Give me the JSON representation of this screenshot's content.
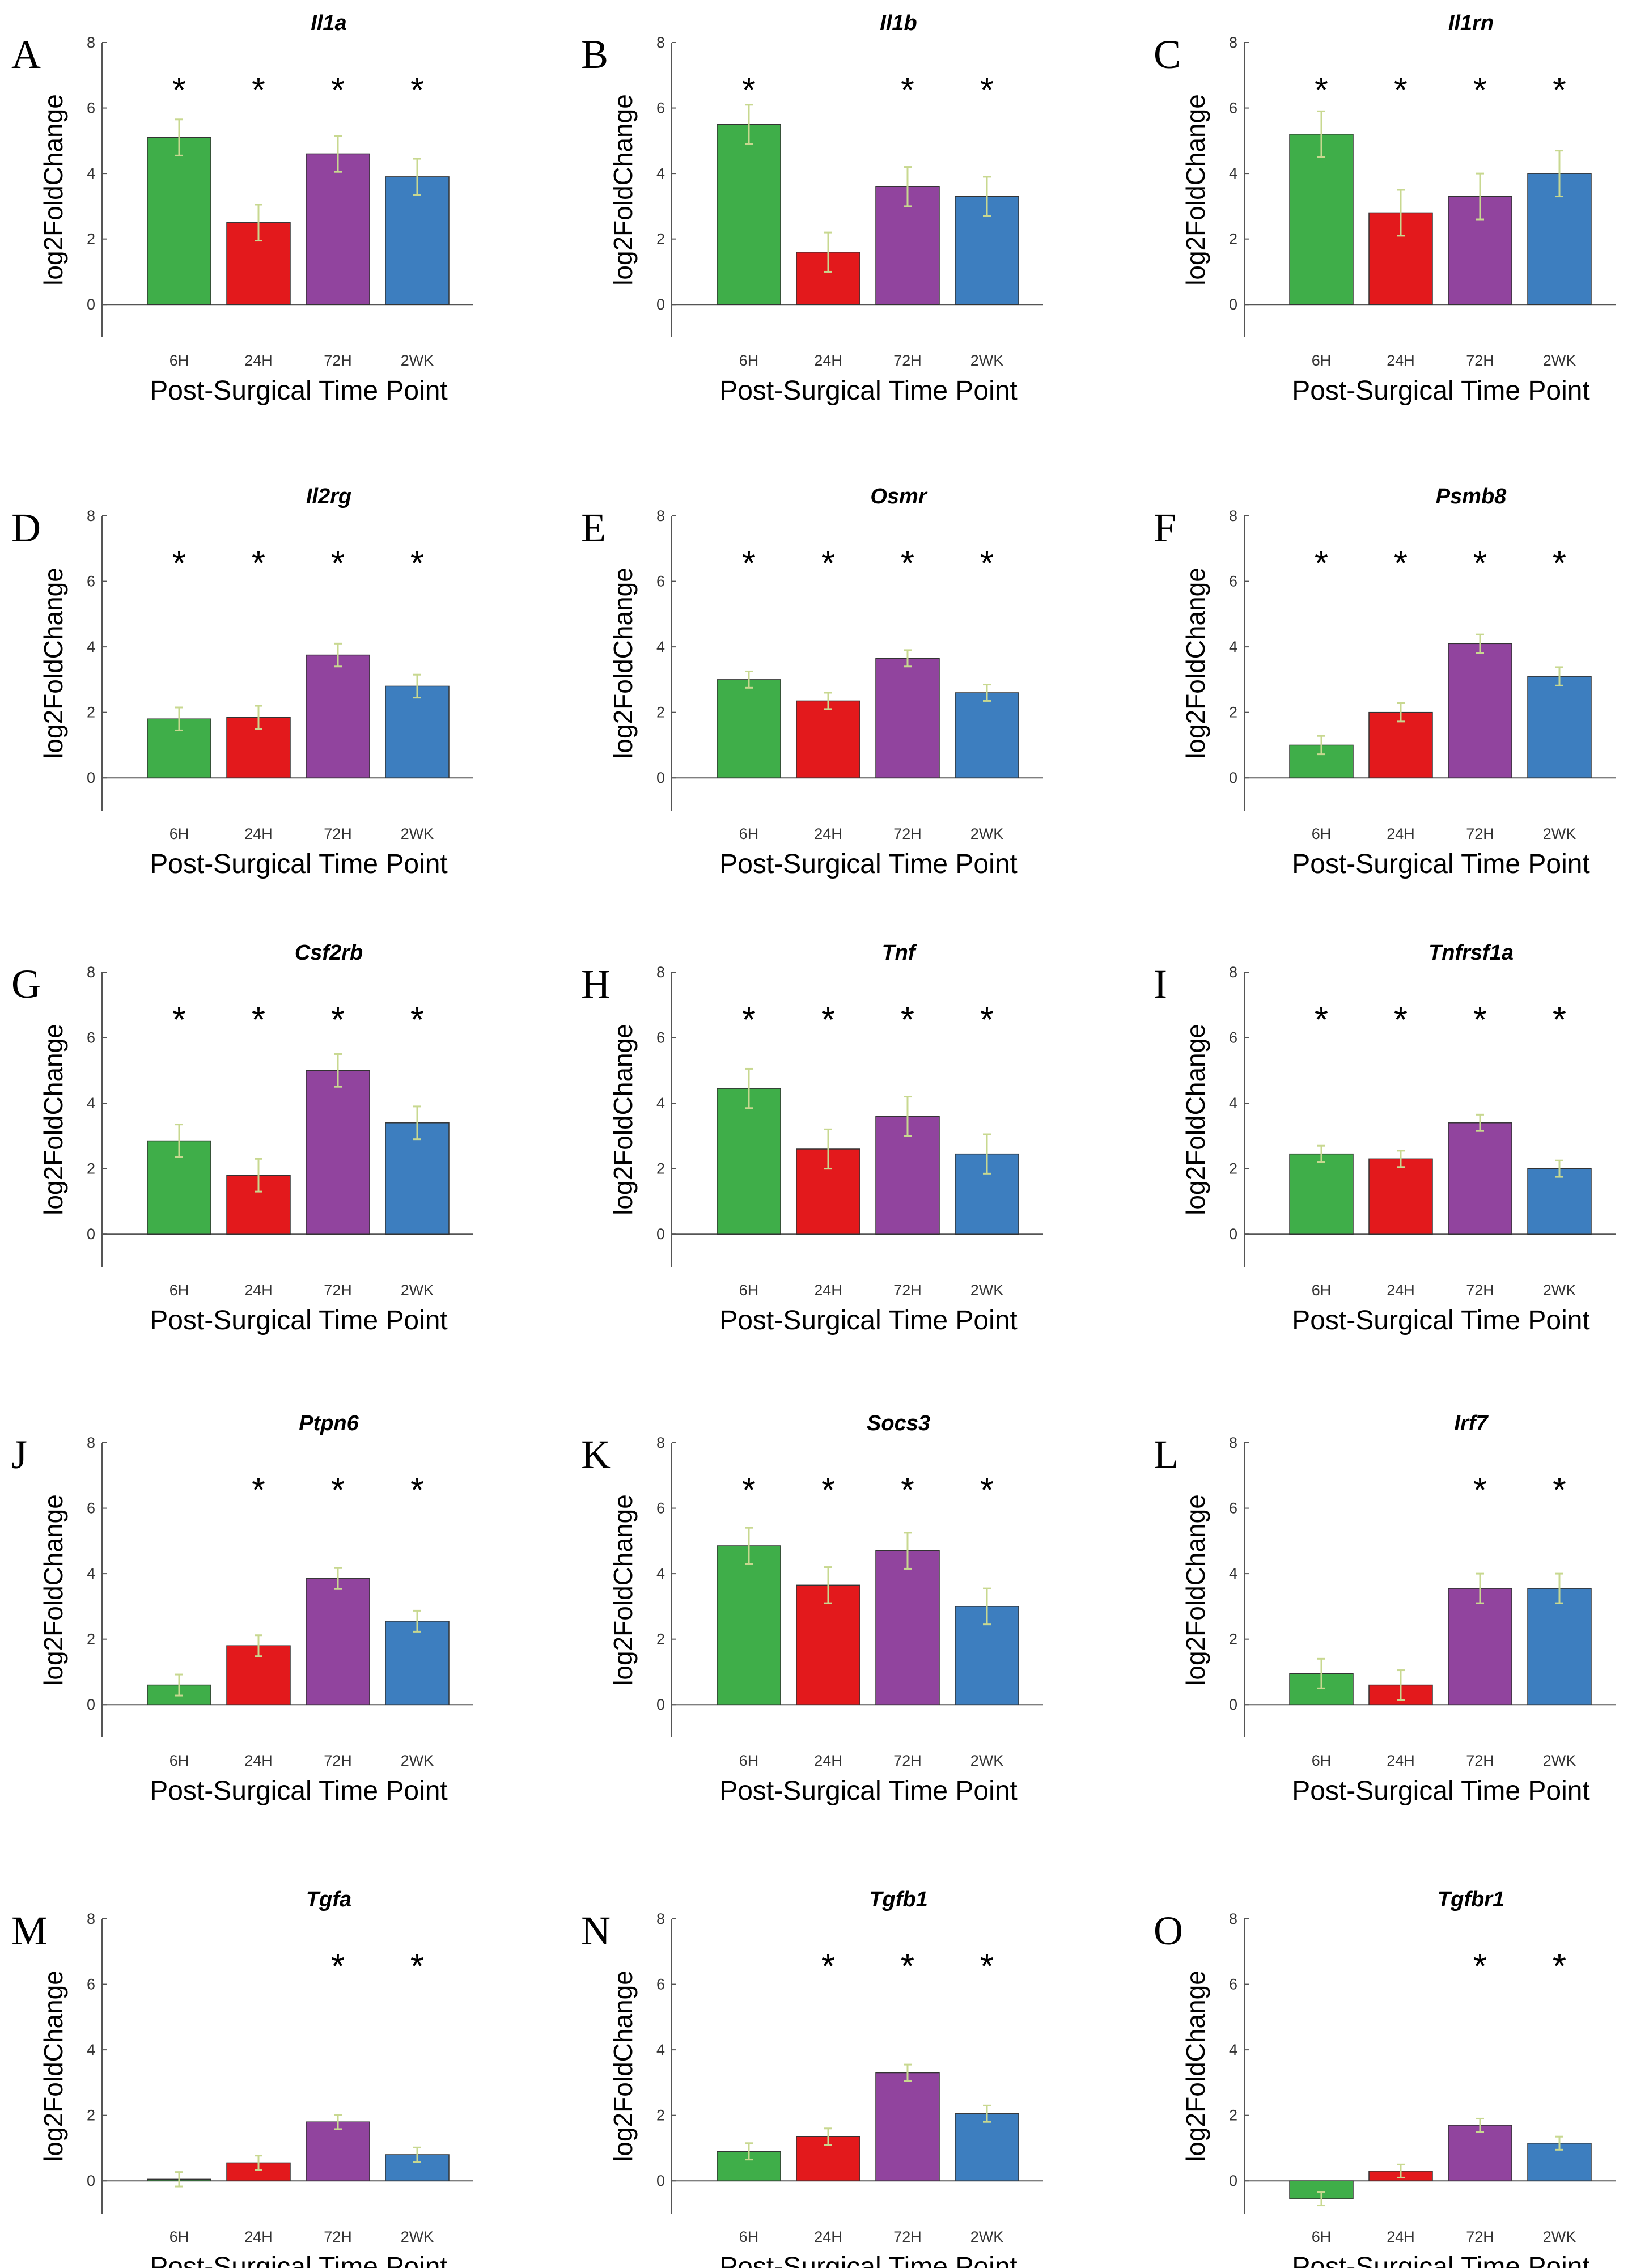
{
  "colors": {
    "6H": "#3fae49",
    "24H": "#e3191c",
    "72H": "#91449e",
    "2WK": "#3d7ebf",
    "errorbar": "#c8d890"
  },
  "chart_data": [
    {
      "type": "bar",
      "panel": "A",
      "title": "Il1a",
      "ylabel": "log2FoldChange",
      "xlabel": "Post-Surgical Time Point",
      "categories": [
        "6H",
        "24H",
        "72H",
        "2WK"
      ],
      "values": [
        5.1,
        2.5,
        4.6,
        3.9
      ],
      "errors": [
        0.55,
        0.55,
        0.55,
        0.55
      ],
      "significant": [
        true,
        true,
        true,
        true
      ],
      "ylim": [
        -1,
        8
      ],
      "yticks": [
        0,
        2,
        4,
        6,
        8
      ]
    },
    {
      "type": "bar",
      "panel": "B",
      "title": "Il1b",
      "ylabel": "log2FoldChange",
      "xlabel": "Post-Surgical Time Point",
      "categories": [
        "6H",
        "24H",
        "72H",
        "2WK"
      ],
      "values": [
        5.5,
        1.6,
        3.6,
        3.3
      ],
      "errors": [
        0.6,
        0.6,
        0.6,
        0.6
      ],
      "significant": [
        true,
        false,
        true,
        true
      ],
      "ylim": [
        -1,
        8
      ],
      "yticks": [
        0,
        2,
        4,
        6,
        8
      ]
    },
    {
      "type": "bar",
      "panel": "C",
      "title": "Il1rn",
      "ylabel": "log2FoldChange",
      "xlabel": "Post-Surgical Time Point",
      "categories": [
        "6H",
        "24H",
        "72H",
        "2WK"
      ],
      "values": [
        5.2,
        2.8,
        3.3,
        4.0
      ],
      "errors": [
        0.7,
        0.7,
        0.7,
        0.7
      ],
      "significant": [
        true,
        true,
        true,
        true
      ],
      "ylim": [
        -1,
        8
      ],
      "yticks": [
        0,
        2,
        4,
        6,
        8
      ]
    },
    {
      "type": "bar",
      "panel": "D",
      "title": "Il2rg",
      "ylabel": "log2FoldChange",
      "xlabel": "Post-Surgical Time Point",
      "categories": [
        "6H",
        "24H",
        "72H",
        "2WK"
      ],
      "values": [
        1.8,
        1.85,
        3.75,
        2.8
      ],
      "errors": [
        0.35,
        0.35,
        0.35,
        0.35
      ],
      "significant": [
        true,
        true,
        true,
        true
      ],
      "ylim": [
        -1,
        8
      ],
      "yticks": [
        0,
        2,
        4,
        6,
        8
      ]
    },
    {
      "type": "bar",
      "panel": "E",
      "title": "Osmr",
      "ylabel": "log2FoldChange",
      "xlabel": "Post-Surgical Time Point",
      "categories": [
        "6H",
        "24H",
        "72H",
        "2WK"
      ],
      "values": [
        3.0,
        2.35,
        3.65,
        2.6
      ],
      "errors": [
        0.25,
        0.25,
        0.25,
        0.25
      ],
      "significant": [
        true,
        true,
        true,
        true
      ],
      "ylim": [
        -1,
        8
      ],
      "yticks": [
        0,
        2,
        4,
        6,
        8
      ]
    },
    {
      "type": "bar",
      "panel": "F",
      "title": "Psmb8",
      "ylabel": "log2FoldChange",
      "xlabel": "Post-Surgical Time Point",
      "categories": [
        "6H",
        "24H",
        "72H",
        "2WK"
      ],
      "values": [
        1.0,
        2.0,
        4.1,
        3.1
      ],
      "errors": [
        0.28,
        0.28,
        0.28,
        0.28
      ],
      "significant": [
        true,
        true,
        true,
        true
      ],
      "ylim": [
        -1,
        8
      ],
      "yticks": [
        0,
        2,
        4,
        6,
        8
      ]
    },
    {
      "type": "bar",
      "panel": "G",
      "title": "Csf2rb",
      "ylabel": "log2FoldChange",
      "xlabel": "Post-Surgical Time Point",
      "categories": [
        "6H",
        "24H",
        "72H",
        "2WK"
      ],
      "values": [
        2.85,
        1.8,
        5.0,
        3.4
      ],
      "errors": [
        0.5,
        0.5,
        0.5,
        0.5
      ],
      "significant": [
        true,
        true,
        true,
        true
      ],
      "ylim": [
        -1,
        8
      ],
      "yticks": [
        0,
        2,
        4,
        6,
        8
      ]
    },
    {
      "type": "bar",
      "panel": "H",
      "title": "Tnf",
      "ylabel": "log2FoldChange",
      "xlabel": "Post-Surgical Time Point",
      "categories": [
        "6H",
        "24H",
        "72H",
        "2WK"
      ],
      "values": [
        4.45,
        2.6,
        3.6,
        2.45
      ],
      "errors": [
        0.6,
        0.6,
        0.6,
        0.6
      ],
      "significant": [
        true,
        true,
        true,
        true
      ],
      "ylim": [
        -1,
        8
      ],
      "yticks": [
        0,
        2,
        4,
        6,
        8
      ]
    },
    {
      "type": "bar",
      "panel": "I",
      "title": "Tnfrsf1a",
      "ylabel": "log2FoldChange",
      "xlabel": "Post-Surgical Time Point",
      "categories": [
        "6H",
        "24H",
        "72H",
        "2WK"
      ],
      "values": [
        2.45,
        2.3,
        3.4,
        2.0
      ],
      "errors": [
        0.25,
        0.25,
        0.25,
        0.25
      ],
      "significant": [
        true,
        true,
        true,
        true
      ],
      "ylim": [
        -1,
        8
      ],
      "yticks": [
        0,
        2,
        4,
        6,
        8
      ]
    },
    {
      "type": "bar",
      "panel": "J",
      "title": "Ptpn6",
      "ylabel": "log2FoldChange",
      "xlabel": "Post-Surgical Time Point",
      "categories": [
        "6H",
        "24H",
        "72H",
        "2WK"
      ],
      "values": [
        0.6,
        1.8,
        3.85,
        2.55
      ],
      "errors": [
        0.32,
        0.32,
        0.32,
        0.32
      ],
      "significant": [
        false,
        true,
        true,
        true
      ],
      "ylim": [
        -1,
        8
      ],
      "yticks": [
        0,
        2,
        4,
        6,
        8
      ]
    },
    {
      "type": "bar",
      "panel": "K",
      "title": "Socs3",
      "ylabel": "log2FoldChange",
      "xlabel": "Post-Surgical Time Point",
      "categories": [
        "6H",
        "24H",
        "72H",
        "2WK"
      ],
      "values": [
        4.85,
        3.65,
        4.7,
        3.0
      ],
      "errors": [
        0.55,
        0.55,
        0.55,
        0.55
      ],
      "significant": [
        true,
        true,
        true,
        true
      ],
      "ylim": [
        -1,
        8
      ],
      "yticks": [
        0,
        2,
        4,
        6,
        8
      ]
    },
    {
      "type": "bar",
      "panel": "L",
      "title": "Irf7",
      "ylabel": "log2FoldChange",
      "xlabel": "Post-Surgical Time Point",
      "categories": [
        "6H",
        "24H",
        "72H",
        "2WK"
      ],
      "values": [
        0.95,
        0.6,
        3.55,
        3.55
      ],
      "errors": [
        0.45,
        0.45,
        0.45,
        0.45
      ],
      "significant": [
        false,
        false,
        true,
        true
      ],
      "ylim": [
        -1,
        8
      ],
      "yticks": [
        0,
        2,
        4,
        6,
        8
      ]
    },
    {
      "type": "bar",
      "panel": "M",
      "title": "Tgfa",
      "ylabel": "log2FoldChange",
      "xlabel": "Post-Surgical Time Point",
      "categories": [
        "6H",
        "24H",
        "72H",
        "2WK"
      ],
      "values": [
        0.05,
        0.55,
        1.8,
        0.8
      ],
      "errors": [
        0.22,
        0.22,
        0.22,
        0.22
      ],
      "significant": [
        false,
        false,
        true,
        true
      ],
      "ylim": [
        -1,
        8
      ],
      "yticks": [
        0,
        2,
        4,
        6,
        8
      ]
    },
    {
      "type": "bar",
      "panel": "N",
      "title": "Tgfb1",
      "ylabel": "log2FoldChange",
      "xlabel": "Post-Surgical Time Point",
      "categories": [
        "6H",
        "24H",
        "72H",
        "2WK"
      ],
      "values": [
        0.9,
        1.35,
        3.3,
        2.05
      ],
      "errors": [
        0.25,
        0.25,
        0.25,
        0.25
      ],
      "significant": [
        false,
        true,
        true,
        true
      ],
      "ylim": [
        -1,
        8
      ],
      "yticks": [
        0,
        2,
        4,
        6,
        8
      ]
    },
    {
      "type": "bar",
      "panel": "O",
      "title": "Tgfbr1",
      "ylabel": "log2FoldChange",
      "xlabel": "Post-Surgical Time Point",
      "categories": [
        "6H",
        "24H",
        "72H",
        "2WK"
      ],
      "values": [
        -0.55,
        0.3,
        1.7,
        1.15
      ],
      "errors": [
        0.2,
        0.2,
        0.2,
        0.2
      ],
      "significant": [
        false,
        false,
        true,
        true
      ],
      "ylim": [
        -1,
        8
      ],
      "yticks": [
        0,
        2,
        4,
        6,
        8
      ]
    }
  ]
}
